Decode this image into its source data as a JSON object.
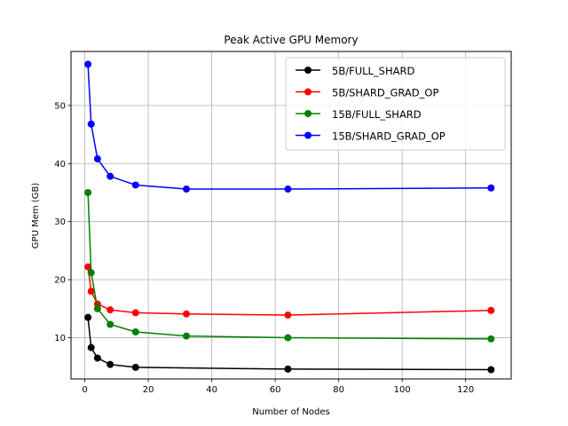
{
  "chart_data": {
    "type": "line",
    "title": "Peak Active GPU Memory",
    "xlabel": "Number of Nodes",
    "ylabel": "GPU Mem (GB)",
    "xlim": [
      -4.35,
      134.35
    ],
    "ylim": [
      2.9,
      59.3
    ],
    "xticks": [
      0,
      20,
      40,
      60,
      80,
      100,
      120
    ],
    "yticks": [
      10,
      20,
      30,
      40,
      50
    ],
    "grid": true,
    "legend_position": "top-right",
    "x": [
      1,
      2,
      4,
      8,
      16,
      32,
      64,
      128
    ],
    "series": [
      {
        "name": "5B/FULL_SHARD",
        "color": "#000000",
        "values": [
          13.5,
          8.3,
          6.5,
          5.4,
          4.9,
          null,
          4.6,
          4.5
        ]
      },
      {
        "name": "5B/SHARD_GRAD_OP",
        "color": "#ff0000",
        "values": [
          22.2,
          18.0,
          15.8,
          14.8,
          14.3,
          14.1,
          13.9,
          14.7
        ]
      },
      {
        "name": "15B/FULL_SHARD",
        "color": "#008000",
        "values": [
          35.0,
          21.2,
          15.0,
          12.3,
          11.0,
          10.3,
          10.0,
          9.8
        ]
      },
      {
        "name": "15B/SHARD_GRAD_OP",
        "color": "#0000ff",
        "values": [
          57.1,
          46.8,
          40.8,
          37.8,
          36.3,
          35.6,
          35.6,
          35.8
        ]
      }
    ]
  }
}
